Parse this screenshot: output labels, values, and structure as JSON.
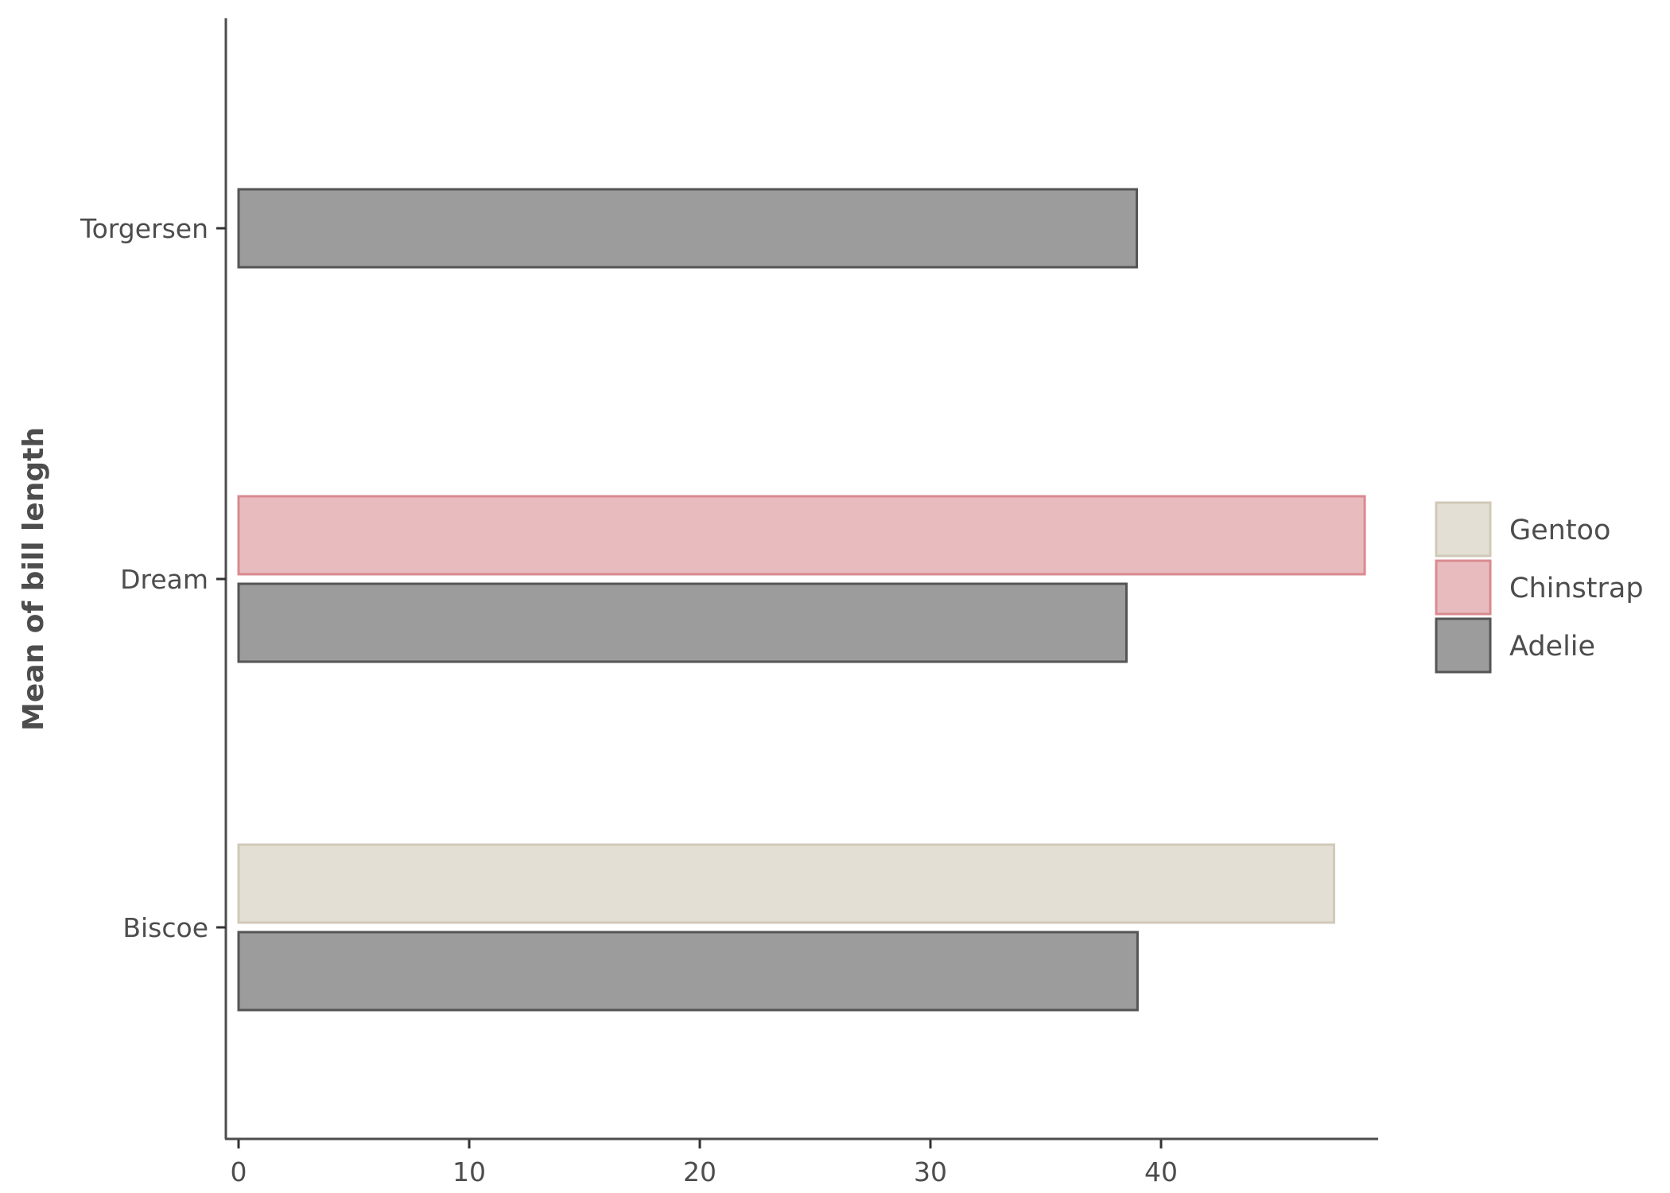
{
  "chart_data": {
    "type": "bar",
    "orientation": "horizontal",
    "title": "",
    "xlabel": "",
    "ylabel": "Mean of bill length",
    "categories": [
      "Biscoe",
      "Dream",
      "Torgersen"
    ],
    "series": [
      {
        "name": "Adelie",
        "values": [
          38.98,
          38.5,
          38.95
        ],
        "fill": "#9c9c9c",
        "stroke": "#555555"
      },
      {
        "name": "Chinstrap",
        "values": [
          null,
          48.83,
          null
        ],
        "fill": "#e8bcbf",
        "stroke": "#d98a90"
      },
      {
        "name": "Gentoo",
        "values": [
          47.5,
          null,
          null
        ],
        "fill": "#e3dfd4",
        "stroke": "#d1c9b8"
      }
    ],
    "xticks": [
      "0",
      "10",
      "20",
      "30",
      "40"
    ],
    "xlim": [
      -0.5,
      49.3
    ],
    "grid": false,
    "legend": {
      "position": "right",
      "order": [
        "Gentoo",
        "Chinstrap",
        "Adelie"
      ]
    }
  }
}
